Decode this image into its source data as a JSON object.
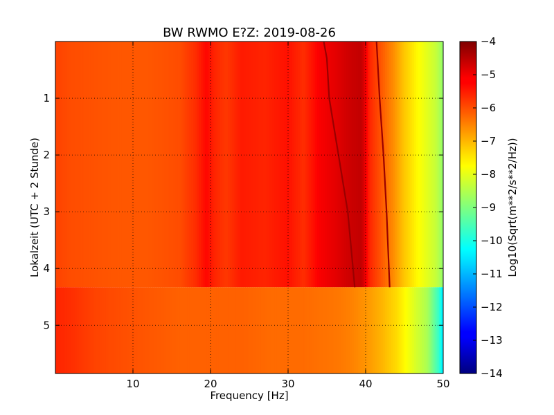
{
  "chart_data": {
    "type": "heatmap",
    "title": "BW RWMO E?Z: 2019-08-26",
    "xlabel": "Frequency [Hz]",
    "ylabel": "Lokalzeit (UTC + 2 Stunde)",
    "colorbar_label": "Log10(Sqrt(m**2/s**2/Hz))",
    "xlim": [
      0,
      50
    ],
    "ylim": [
      5.85,
      0
    ],
    "x_ticks": [
      10,
      20,
      30,
      40,
      50
    ],
    "y_ticks": [
      1,
      2,
      3,
      4,
      5
    ],
    "colorbar_range": [
      -14,
      -4
    ],
    "colorbar_ticks": [
      -4,
      -5,
      -6,
      -7,
      -8,
      -9,
      -10,
      -11,
      -12,
      -13,
      -14
    ],
    "colormap": "jet",
    "grid": true,
    "frequency_profile_before_4_3h": {
      "x": [
        0,
        2,
        5,
        8,
        12,
        16,
        18,
        19.5,
        20.5,
        22,
        24,
        27,
        30,
        32,
        34,
        36,
        38,
        39.5,
        40.5,
        42,
        43.5,
        45,
        47,
        49,
        50
      ],
      "log10_amplitude": [
        -5.9,
        -6.0,
        -6.05,
        -6.1,
        -6.1,
        -6.0,
        -5.7,
        -5.3,
        -5.6,
        -5.8,
        -5.5,
        -5.6,
        -5.4,
        -5.7,
        -5.2,
        -5.0,
        -4.75,
        -4.65,
        -5.6,
        -6.1,
        -6.6,
        -7.2,
        -7.8,
        -8.3,
        -8.8
      ]
    },
    "frequency_profile_after_4_3h": {
      "x": [
        0,
        2,
        5,
        8,
        12,
        16,
        20,
        24,
        28,
        32,
        36,
        38,
        40,
        42,
        44,
        46,
        48,
        49.5,
        50
      ],
      "log10_amplitude": [
        -5.6,
        -5.7,
        -5.9,
        -6.0,
        -6.1,
        -6.2,
        -6.2,
        -6.2,
        -6.3,
        -6.3,
        -6.4,
        -6.5,
        -6.7,
        -7.0,
        -7.4,
        -8.0,
        -8.6,
        -9.8,
        -10.5
      ]
    },
    "regime_change_time_h": 4.33,
    "drifting_lines": [
      {
        "time_h": [
          0,
          0.3,
          1,
          2,
          3,
          4.33
        ],
        "frequency_hz": [
          34.6,
          35.0,
          35.3,
          36.5,
          37.7,
          38.6
        ]
      },
      {
        "time_h": [
          0,
          1,
          2,
          3,
          4.33
        ],
        "frequency_hz": [
          41.4,
          41.8,
          42.3,
          42.7,
          43.1
        ]
      }
    ]
  }
}
